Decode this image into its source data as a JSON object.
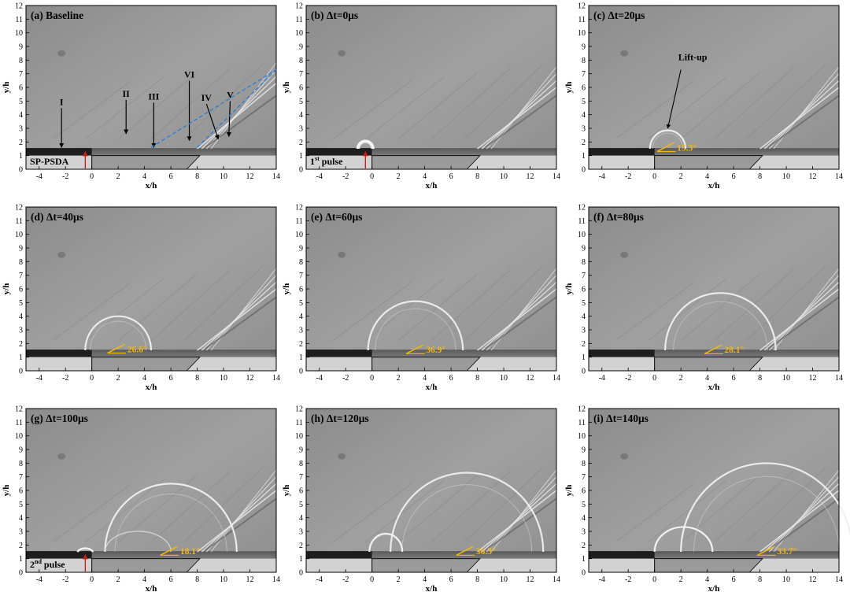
{
  "figure": {
    "xlabel": "x/h",
    "ylabel": "y/h",
    "xticks": [
      "-4",
      "-2",
      "0",
      "2",
      "4",
      "6",
      "8",
      "10",
      "12",
      "14"
    ],
    "yticks": [
      "0",
      "1",
      "2",
      "3",
      "4",
      "5",
      "6",
      "7",
      "8",
      "9",
      "10",
      "11",
      "12"
    ],
    "colors": {
      "angle_text": "#f2b711",
      "pulse_arrow": "#cc1a1a",
      "shock_guide": "#2a7fd4",
      "background": "#9a9a9a",
      "ramp": "#d2d2d2"
    },
    "panels": [
      {
        "title": "(a) Baseline",
        "angle": "",
        "pulse": "",
        "pulse_sup": "",
        "left_label": "SP-PSDA"
      },
      {
        "title": "(b) Δt=0μs",
        "angle": "",
        "pulse": "1",
        "pulse_sup": "st",
        "pulse_word": " pulse",
        "left_label": ""
      },
      {
        "title": "(c) Δt=20μs",
        "angle": "15.3°",
        "pulse": "",
        "pulse_sup": "",
        "left_label": "",
        "annotation": "Lift-up"
      },
      {
        "title": "(d) Δt=40μs",
        "angle": "26.6°",
        "pulse": "",
        "pulse_sup": "",
        "left_label": ""
      },
      {
        "title": "(e) Δt=60μs",
        "angle": "36.9°",
        "pulse": "",
        "pulse_sup": "",
        "left_label": ""
      },
      {
        "title": "(f) Δt=80μs",
        "angle": "28.1°",
        "pulse": "",
        "pulse_sup": "",
        "left_label": ""
      },
      {
        "title": "(g) Δt=100μs",
        "angle": "18.1°",
        "pulse": "2",
        "pulse_sup": "nd",
        "pulse_word": " pulse",
        "left_label": ""
      },
      {
        "title": "(h) Δt=120μs",
        "angle": "36.3°",
        "pulse": "",
        "pulse_sup": "",
        "left_label": ""
      },
      {
        "title": "(i) Δt=140μs",
        "angle": "33.7°",
        "pulse": "",
        "pulse_sup": "",
        "left_label": ""
      }
    ],
    "baseline_labels": [
      "I",
      "II",
      "III",
      "VI",
      "IV",
      "V"
    ]
  }
}
